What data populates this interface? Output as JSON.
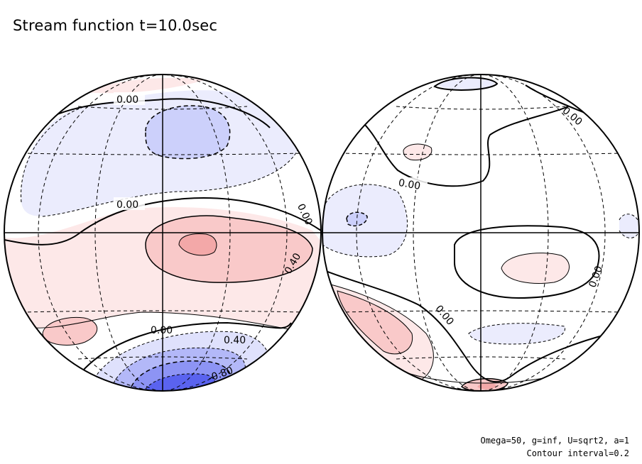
{
  "title": "Stream function t=10.0sec",
  "footer": {
    "params": "Omega=50, g=inf, U=sqrt2, a=1",
    "contour_interval": "Contour interval=0.2"
  },
  "contour_labels": {
    "left_top_zero": "0.00",
    "left_mid_zero": "0.00",
    "left_rim_zero": "0.00",
    "left_pos": "0.40",
    "left_low_zero": "0.00",
    "left_low_pos": "0.40",
    "left_low_neg": "-0.80",
    "right_top_zero": "0.00",
    "right_upper_zero": "0.00",
    "right_mid_zero": "0.00",
    "right_low_zero": "0.00"
  },
  "colors": {
    "positive_light": "#fde8e8",
    "positive_mid": "#f9c9c9",
    "positive_strong": "#f3a8a8",
    "negative_light": "#ebecfd",
    "negative_mid": "#ccd0fb",
    "negative_strong": "#5a63ef"
  }
}
